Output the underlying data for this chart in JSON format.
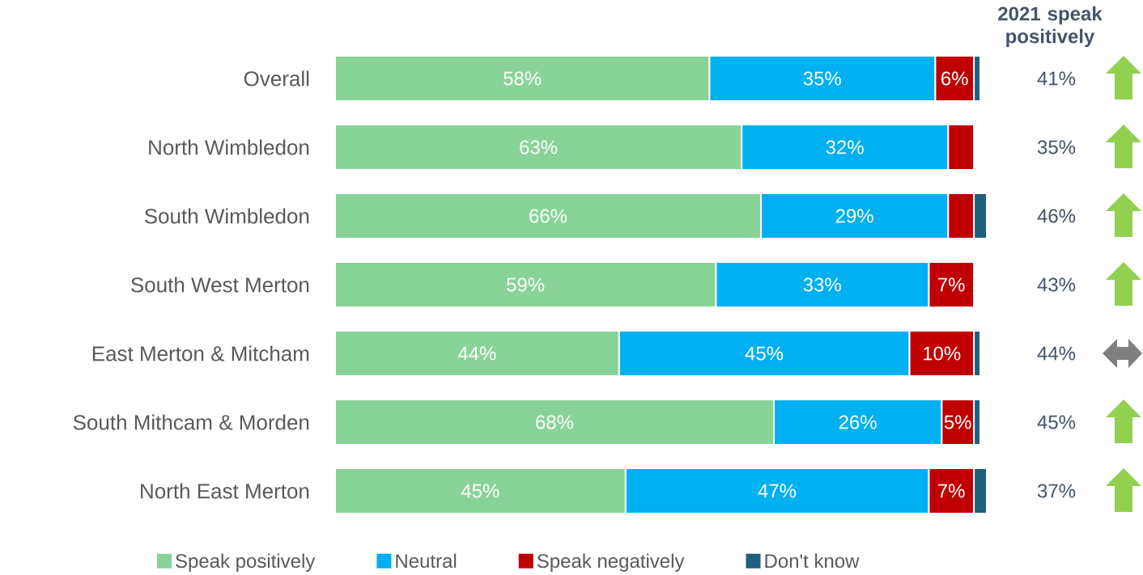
{
  "chart_data": {
    "type": "bar",
    "orientation": "horizontal",
    "stacked": true,
    "legend": "bottom",
    "categories": [
      "Overall",
      "North Wimbledon",
      "South Wimbledon",
      "South West Merton",
      "East Merton & Mitcham",
      "South Mithcam & Morden",
      "North East Merton"
    ],
    "series": [
      {
        "name": "Speak positively",
        "color": "#88d498",
        "values": [
          58,
          63,
          66,
          59,
          44,
          68,
          45
        ],
        "value_labels": [
          "58%",
          "63%",
          "66%",
          "59%",
          "44%",
          "68%",
          "45%"
        ]
      },
      {
        "name": "Neutral",
        "color": "#00b0f0",
        "values": [
          35,
          32,
          29,
          33,
          45,
          26,
          47
        ],
        "value_labels": [
          "35%",
          "32%",
          "29%",
          "33%",
          "45%",
          "26%",
          "47%"
        ]
      },
      {
        "name": "Speak negatively",
        "color": "#c00000",
        "values": [
          6,
          4,
          4,
          7,
          10,
          5,
          7
        ],
        "value_labels": [
          "6%",
          null,
          null,
          "7%",
          "10%",
          "5%",
          "7%"
        ]
      },
      {
        "name": "Don't know",
        "color": "#1f5f7f",
        "values": [
          1,
          null,
          2,
          null,
          1,
          1,
          2
        ],
        "value_labels": [
          null,
          null,
          null,
          null,
          null,
          null,
          null
        ]
      }
    ],
    "annotations": [
      "2021 speak positively",
      "41%",
      "35%",
      "46%",
      "43%",
      "44%",
      "45%",
      "37%"
    ]
  }
}
